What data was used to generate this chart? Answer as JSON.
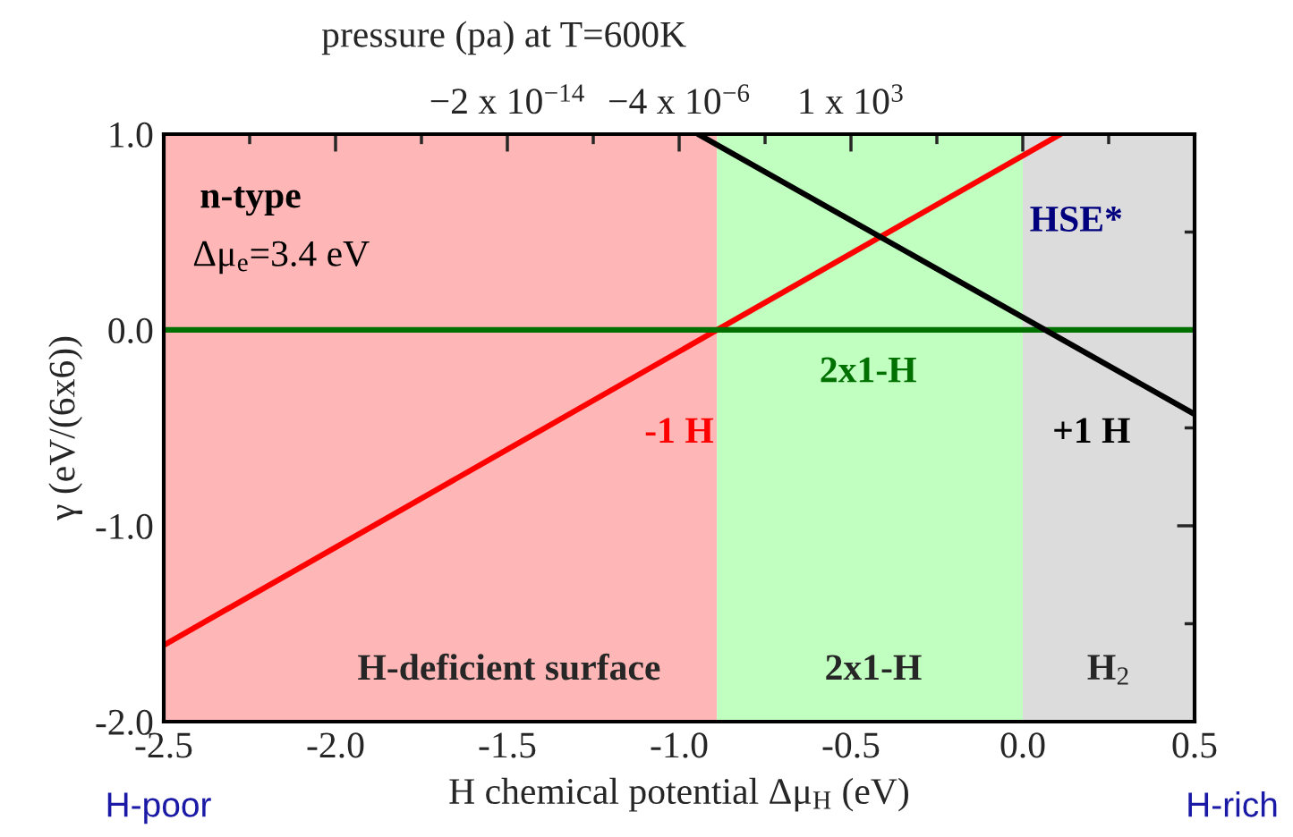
{
  "chart_data": {
    "type": "line",
    "xlabel": "H chemical potential Δμ$_{H}$ (eV)",
    "ylabel": "γ (eV/(6x6))",
    "x2label": "pressure (pa) at T=600K",
    "series": [
      {
        "name": "-1 H",
        "color": "#ff0000",
        "x": [
          -2.5,
          0.11
        ],
        "values": [
          -1.61,
          1.0
        ]
      },
      {
        "name": "2x1-H",
        "color": "#007000",
        "x": [
          -2.5,
          0.5
        ],
        "values": [
          0.0,
          0.0
        ]
      },
      {
        "name": "+1 H",
        "color": "#000000",
        "x": [
          -0.945,
          0.5
        ],
        "values": [
          1.0,
          -0.43
        ]
      }
    ],
    "bands": [
      {
        "axis": "x",
        "from": -2.5,
        "to": -0.89,
        "label": "H-deficient surface",
        "color": "#ffb6b6"
      },
      {
        "axis": "x",
        "from": -0.89,
        "to": 0.0,
        "label": "2x1-H",
        "color": "#c0ffc0"
      },
      {
        "axis": "x",
        "from": 0.0,
        "to": 0.5,
        "label": "H$_{2}$",
        "color": "#dcdcdc"
      }
    ],
    "annotations": [
      "n-type",
      "Δμ$_{e}$=3.4 eV",
      "HSE*",
      "H-poor",
      "H-rich",
      {
        "text": "−2 x 10$^{−14}$",
        "x": -1.5,
        "y": 1.0
      },
      {
        "text": "−4 x 10$^{−6}$",
        "x": -1.0,
        "y": 1.0
      },
      {
        "text": "1 x 10$^{3}$",
        "x": -0.5,
        "y": 1.0
      }
    ],
    "xlim": [
      -2.5,
      0.5
    ],
    "xticks": [
      -2.5,
      {
        "value": -2.25,
        "label": null
      },
      {
        "value": -2.0,
        "label": "-2.0"
      },
      {
        "value": -1.75,
        "label": null
      },
      -1.5,
      {
        "value": -1.25,
        "label": null
      },
      {
        "value": -1.0,
        "label": "-1.0"
      },
      {
        "value": -0.75,
        "label": null
      },
      -0.5,
      {
        "value": -0.25,
        "label": null
      },
      {
        "value": 0.0,
        "label": "0.0"
      },
      {
        "value": 0.25,
        "label": null
      },
      0.5
    ],
    "ylim": [
      -2.0,
      1.0
    ],
    "yticks": [
      {
        "value": -2.0,
        "label": "-2.0"
      },
      {
        "value": -1.5,
        "label": null
      },
      {
        "value": -1.0,
        "label": "-1.0"
      },
      {
        "value": -0.5,
        "label": null
      },
      {
        "value": 0.0,
        "label": "0.0"
      },
      {
        "value": 0.5,
        "label": null
      },
      {
        "value": 1.0,
        "label": "1.0"
      }
    ],
    "grid": false,
    "legend": false,
    "marker": "none",
    "line_style": "solid"
  }
}
